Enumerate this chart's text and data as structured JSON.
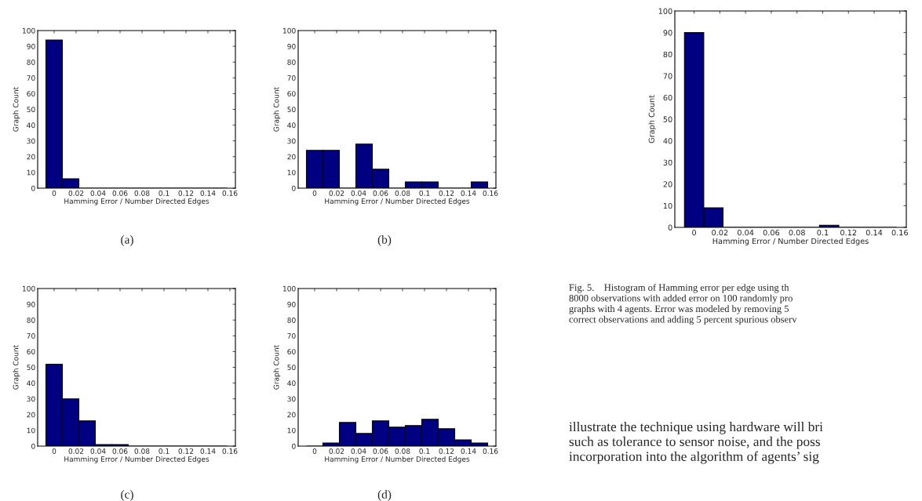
{
  "chart_data": [
    {
      "type": "histogram",
      "bins": [
        -0.0075,
        0.0075,
        0.0225,
        0.0375,
        0.0525,
        0.0675,
        0.0825,
        0.0975,
        0.1125,
        0.1275,
        0.1425,
        0.1575
      ],
      "values": [
        94,
        6,
        0,
        0,
        0,
        0,
        0,
        0,
        0,
        0,
        0
      ],
      "color": "#000080",
      "xlabel": "Hamming Error / Number Directed Edges",
      "ylabel": "Graph Count",
      "xlim": [
        -0.015,
        0.165
      ],
      "xticks": [
        0,
        0.02,
        0.04,
        0.06,
        0.08,
        0.1,
        0.12,
        0.14,
        0.16
      ],
      "ylim": [
        0,
        100
      ],
      "yticks": [
        0,
        10,
        20,
        30,
        40,
        50,
        60,
        70,
        80,
        90,
        100
      ],
      "grid": false,
      "annotations": [
        "(a)"
      ]
    },
    {
      "type": "histogram",
      "bins": [
        -0.0075,
        0.0075,
        0.0225,
        0.0375,
        0.0525,
        0.0675,
        0.0825,
        0.0975,
        0.1125,
        0.1275,
        0.1425,
        0.1575
      ],
      "values": [
        24,
        24,
        0,
        28,
        12,
        0,
        4,
        4,
        0,
        0,
        4
      ],
      "color": "#000080",
      "xlabel": "Hamming Error / Number Directed Edges",
      "ylabel": "Graph Count",
      "xlim": [
        -0.015,
        0.165
      ],
      "xticks": [
        0,
        0.02,
        0.04,
        0.06,
        0.08,
        0.1,
        0.12,
        0.14,
        0.16
      ],
      "ylim": [
        0,
        100
      ],
      "yticks": [
        0,
        10,
        20,
        30,
        40,
        50,
        60,
        70,
        80,
        90,
        100
      ],
      "grid": false,
      "annotations": [
        "(b)"
      ]
    },
    {
      "type": "histogram",
      "bins": [
        -0.0075,
        0.0075,
        0.0225,
        0.0375,
        0.0525,
        0.0675,
        0.0825,
        0.0975,
        0.1125,
        0.1275,
        0.1425,
        0.1575
      ],
      "values": [
        52,
        30,
        16,
        1,
        1,
        0,
        0,
        0,
        0,
        0,
        0
      ],
      "color": "#000080",
      "xlabel": "Hamming Error / Number Directed Edges",
      "ylabel": "Graph Count",
      "xlim": [
        -0.015,
        0.165
      ],
      "xticks": [
        0,
        0.02,
        0.04,
        0.06,
        0.08,
        0.1,
        0.12,
        0.14,
        0.16
      ],
      "ylim": [
        0,
        100
      ],
      "yticks": [
        0,
        10,
        20,
        30,
        40,
        50,
        60,
        70,
        80,
        90,
        100
      ],
      "grid": false,
      "annotations": [
        "(c)"
      ]
    },
    {
      "type": "histogram",
      "bins": [
        -0.0075,
        0.0075,
        0.0225,
        0.0375,
        0.0525,
        0.0675,
        0.0825,
        0.0975,
        0.1125,
        0.1275,
        0.1425,
        0.1575
      ],
      "values": [
        0,
        2,
        15,
        8,
        16,
        12,
        13,
        17,
        11,
        4,
        2
      ],
      "color": "#000080",
      "xlabel": "Hamming Error / Number Directed Edges",
      "ylabel": "Graph Count",
      "xlim": [
        -0.015,
        0.165
      ],
      "xticks": [
        0,
        0.02,
        0.04,
        0.06,
        0.08,
        0.1,
        0.12,
        0.14,
        0.16
      ],
      "ylim": [
        0,
        100
      ],
      "yticks": [
        0,
        10,
        20,
        30,
        40,
        50,
        60,
        70,
        80,
        90,
        100
      ],
      "grid": false,
      "annotations": [
        "(d)"
      ]
    },
    {
      "type": "histogram",
      "bins": [
        -0.0075,
        0.0075,
        0.0225,
        0.0375,
        0.0525,
        0.0675,
        0.0825,
        0.0975,
        0.1125,
        0.1275,
        0.1425,
        0.1575
      ],
      "values": [
        90,
        9,
        0,
        0,
        0,
        0,
        0,
        1,
        0,
        0,
        0
      ],
      "color": "#000080",
      "xlabel": "Hamming Error / Number Directed Edges",
      "ylabel": "Graph Count",
      "xlim": [
        -0.015,
        0.165
      ],
      "xticks": [
        0,
        0.02,
        0.04,
        0.06,
        0.08,
        0.1,
        0.12,
        0.14,
        0.16
      ],
      "ylim": [
        0,
        100
      ],
      "yticks": [
        0,
        10,
        20,
        30,
        40,
        50,
        60,
        70,
        80,
        90,
        100
      ],
      "grid": false,
      "annotations": [
        "Fig. 5.    Histogram of Hamming error per edge using th\n8000 observations with added error on 100 randomly pro\ngraphs with 4 agents. Error was modeled by removing 5\ncorrect observations and adding 5 percent spurious observ",
        "illustrate the technique using hardware will bri\nsuch as tolerance to sensor noise, and the poss\nincorporation into the algorithm of agents’ sig"
      ]
    }
  ]
}
